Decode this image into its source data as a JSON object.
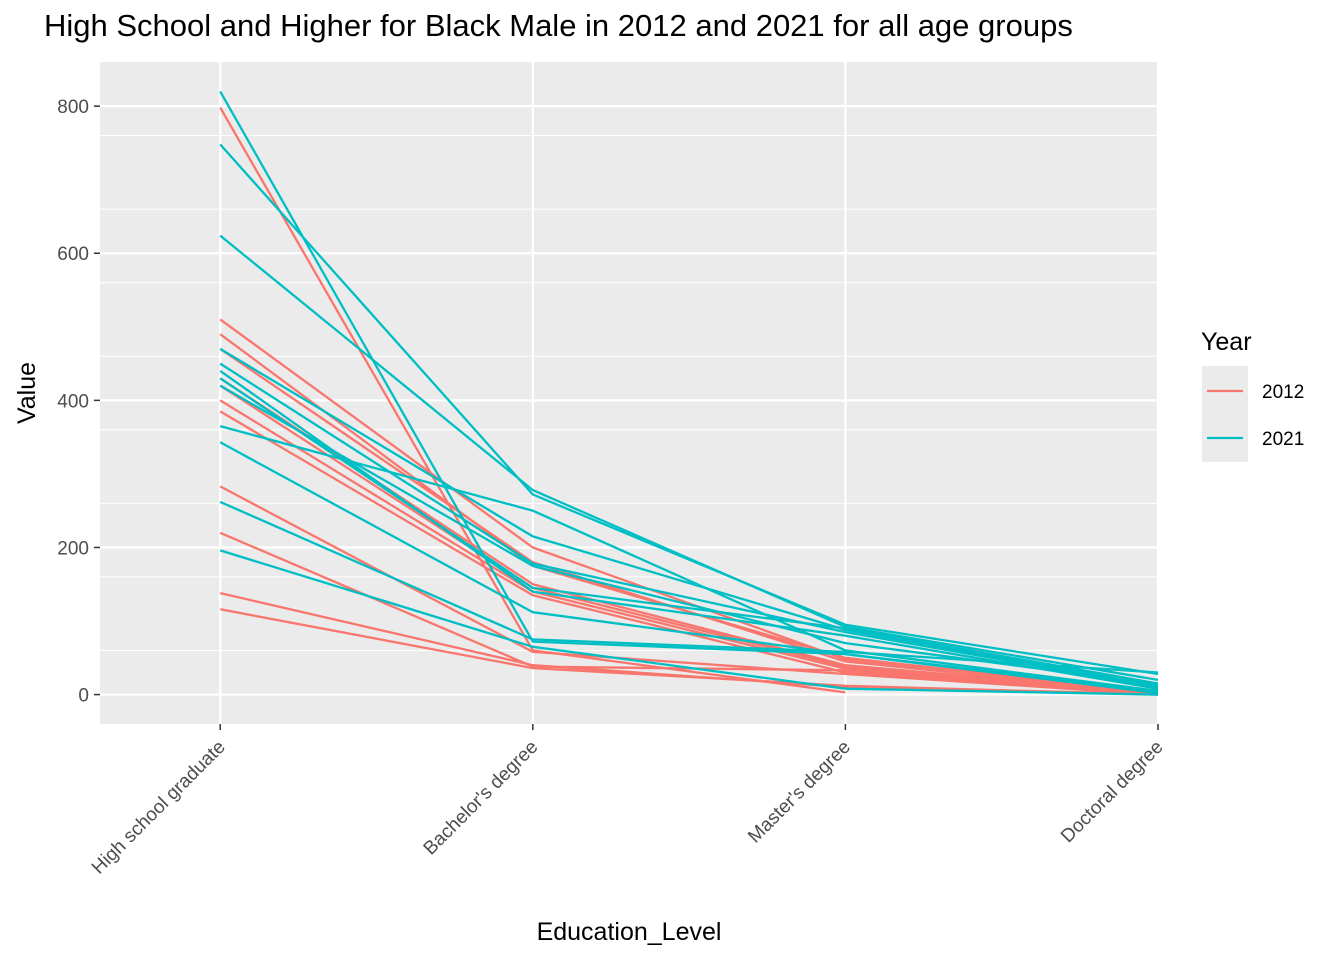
{
  "chart_data": {
    "type": "line",
    "title": "High School and Higher for Black Male in 2012 and 2021 for all age groups",
    "xlabel": "Education_Level",
    "ylabel": "Value",
    "categories": [
      "High school graduate",
      "Bachelor's degree",
      "Master's degree",
      "Doctoral degree"
    ],
    "ylim": [
      -40,
      860
    ],
    "yticks": [
      0,
      200,
      400,
      600,
      800
    ],
    "grid": true,
    "legend": {
      "title": "Year",
      "placement": "right",
      "entries": [
        {
          "label": "2012",
          "color": "#F8766D"
        },
        {
          "label": "2021",
          "color": "#00BFC4"
        }
      ]
    },
    "series": [
      {
        "group": "2012",
        "values": [
          798,
          60,
          3,
          null
        ]
      },
      {
        "group": "2012",
        "values": [
          510,
          200,
          48,
          5
        ]
      },
      {
        "group": "2012",
        "values": [
          490,
          175,
          50,
          3
        ]
      },
      {
        "group": "2012",
        "values": [
          470,
          180,
          45,
          2
        ]
      },
      {
        "group": "2012",
        "values": [
          430,
          150,
          40,
          2
        ]
      },
      {
        "group": "2012",
        "values": [
          420,
          145,
          38,
          1
        ]
      },
      {
        "group": "2012",
        "values": [
          400,
          140,
          35,
          1
        ]
      },
      {
        "group": "2012",
        "values": [
          385,
          135,
          30,
          0
        ]
      },
      {
        "group": "2012",
        "values": [
          283,
          58,
          28,
          0
        ]
      },
      {
        "group": "2012",
        "values": [
          220,
          38,
          33,
          0
        ]
      },
      {
        "group": "2012",
        "values": [
          138,
          40,
          10,
          1
        ]
      },
      {
        "group": "2012",
        "values": [
          116,
          36,
          12,
          0
        ]
      },
      {
        "group": "2021",
        "values": [
          820,
          72,
          55,
          5
        ]
      },
      {
        "group": "2021",
        "values": [
          748,
          272,
          95,
          28
        ]
      },
      {
        "group": "2021",
        "values": [
          624,
          278,
          92,
          20
        ]
      },
      {
        "group": "2021",
        "values": [
          470,
          215,
          88,
          12
        ]
      },
      {
        "group": "2021",
        "values": [
          450,
          178,
          85,
          10
        ]
      },
      {
        "group": "2021",
        "values": [
          440,
          140,
          80,
          8
        ]
      },
      {
        "group": "2021",
        "values": [
          430,
          145,
          90,
          15
        ]
      },
      {
        "group": "2021",
        "values": [
          420,
          175,
          70,
          14
        ]
      },
      {
        "group": "2021",
        "values": [
          365,
          250,
          60,
          5
        ]
      },
      {
        "group": "2021",
        "values": [
          343,
          112,
          55,
          2
        ]
      },
      {
        "group": "2021",
        "values": [
          262,
          75,
          58,
          30
        ]
      },
      {
        "group": "2021",
        "values": [
          196,
          65,
          8,
          0
        ]
      }
    ]
  }
}
